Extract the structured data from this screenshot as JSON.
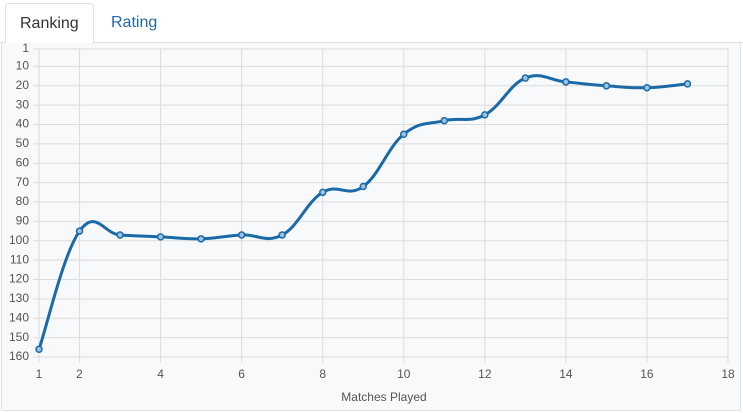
{
  "tabs": [
    "Ranking",
    "Rating"
  ],
  "chart_data": {
    "type": "line",
    "x_label": "Matches Played",
    "x": [
      1,
      2,
      3,
      4,
      5,
      6,
      7,
      8,
      9,
      10,
      11,
      12,
      13,
      14,
      15,
      16,
      17
    ],
    "series": [
      {
        "color": "#1b6aa8",
        "values": [
          156,
          95,
          97,
          98,
          99,
          97,
          97,
          75,
          72,
          45,
          38,
          35,
          16,
          18,
          20,
          21,
          19
        ]
      }
    ],
    "xlim": [
      1,
      18
    ],
    "xticks": [
      1,
      2,
      4,
      6,
      8,
      10,
      12,
      14,
      16,
      18
    ],
    "ylim": [
      1,
      160
    ],
    "yticks": [
      1,
      10,
      20,
      30,
      40,
      50,
      60,
      70,
      80,
      90,
      100,
      110,
      120,
      130,
      140,
      150,
      160
    ],
    "y_inverted": true,
    "grid": true
  }
}
